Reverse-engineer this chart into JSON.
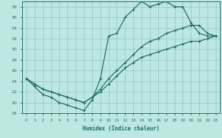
{
  "xlabel": "Humidex (Indice chaleur)",
  "xlim": [
    -0.5,
    23.5
  ],
  "ylim": [
    18,
    39
  ],
  "xticks": [
    0,
    1,
    2,
    3,
    4,
    5,
    6,
    7,
    8,
    9,
    10,
    11,
    12,
    13,
    14,
    15,
    16,
    17,
    18,
    19,
    20,
    21,
    22,
    23
  ],
  "yticks": [
    18,
    20,
    22,
    24,
    26,
    28,
    30,
    32,
    34,
    36,
    38
  ],
  "bg_color": "#bde8e2",
  "grid_color": "#99cccc",
  "line_color": "#1a6b5a",
  "line1_x": [
    0,
    1,
    2,
    3,
    4,
    5,
    6,
    7,
    8,
    9,
    10,
    11,
    12,
    13,
    14,
    15,
    16,
    17,
    18,
    19,
    20,
    21,
    22,
    23
  ],
  "line1_y": [
    24.5,
    23.0,
    21.5,
    21.0,
    20.0,
    19.5,
    19.0,
    18.5,
    20.5,
    24.5,
    32.5,
    33.0,
    36.0,
    37.5,
    39.0,
    38.0,
    38.5,
    39.0,
    38.0,
    38.0,
    35.0,
    33.0,
    32.5,
    32.5
  ],
  "line2_x": [
    0,
    1,
    2,
    3,
    4,
    5,
    6,
    7,
    8,
    9,
    10,
    11,
    12,
    13,
    14,
    15,
    16,
    17,
    18,
    19,
    20,
    21,
    22,
    23
  ],
  "line2_y": [
    24.5,
    23.5,
    22.5,
    22.0,
    21.5,
    21.0,
    20.5,
    20.0,
    21.0,
    22.5,
    24.5,
    26.0,
    27.5,
    29.0,
    30.5,
    31.5,
    32.0,
    33.0,
    33.5,
    34.0,
    34.5,
    34.5,
    33.0,
    32.5
  ],
  "line3_x": [
    0,
    1,
    2,
    3,
    4,
    5,
    6,
    7,
    8,
    9,
    10,
    11,
    12,
    13,
    14,
    15,
    16,
    17,
    18,
    19,
    20,
    21,
    22,
    23
  ],
  "line3_y": [
    24.5,
    23.5,
    22.5,
    22.0,
    21.5,
    21.0,
    20.5,
    20.0,
    21.0,
    22.0,
    23.5,
    25.0,
    26.5,
    27.5,
    28.5,
    29.0,
    29.5,
    30.0,
    30.5,
    31.0,
    31.5,
    31.5,
    32.0,
    32.5
  ]
}
